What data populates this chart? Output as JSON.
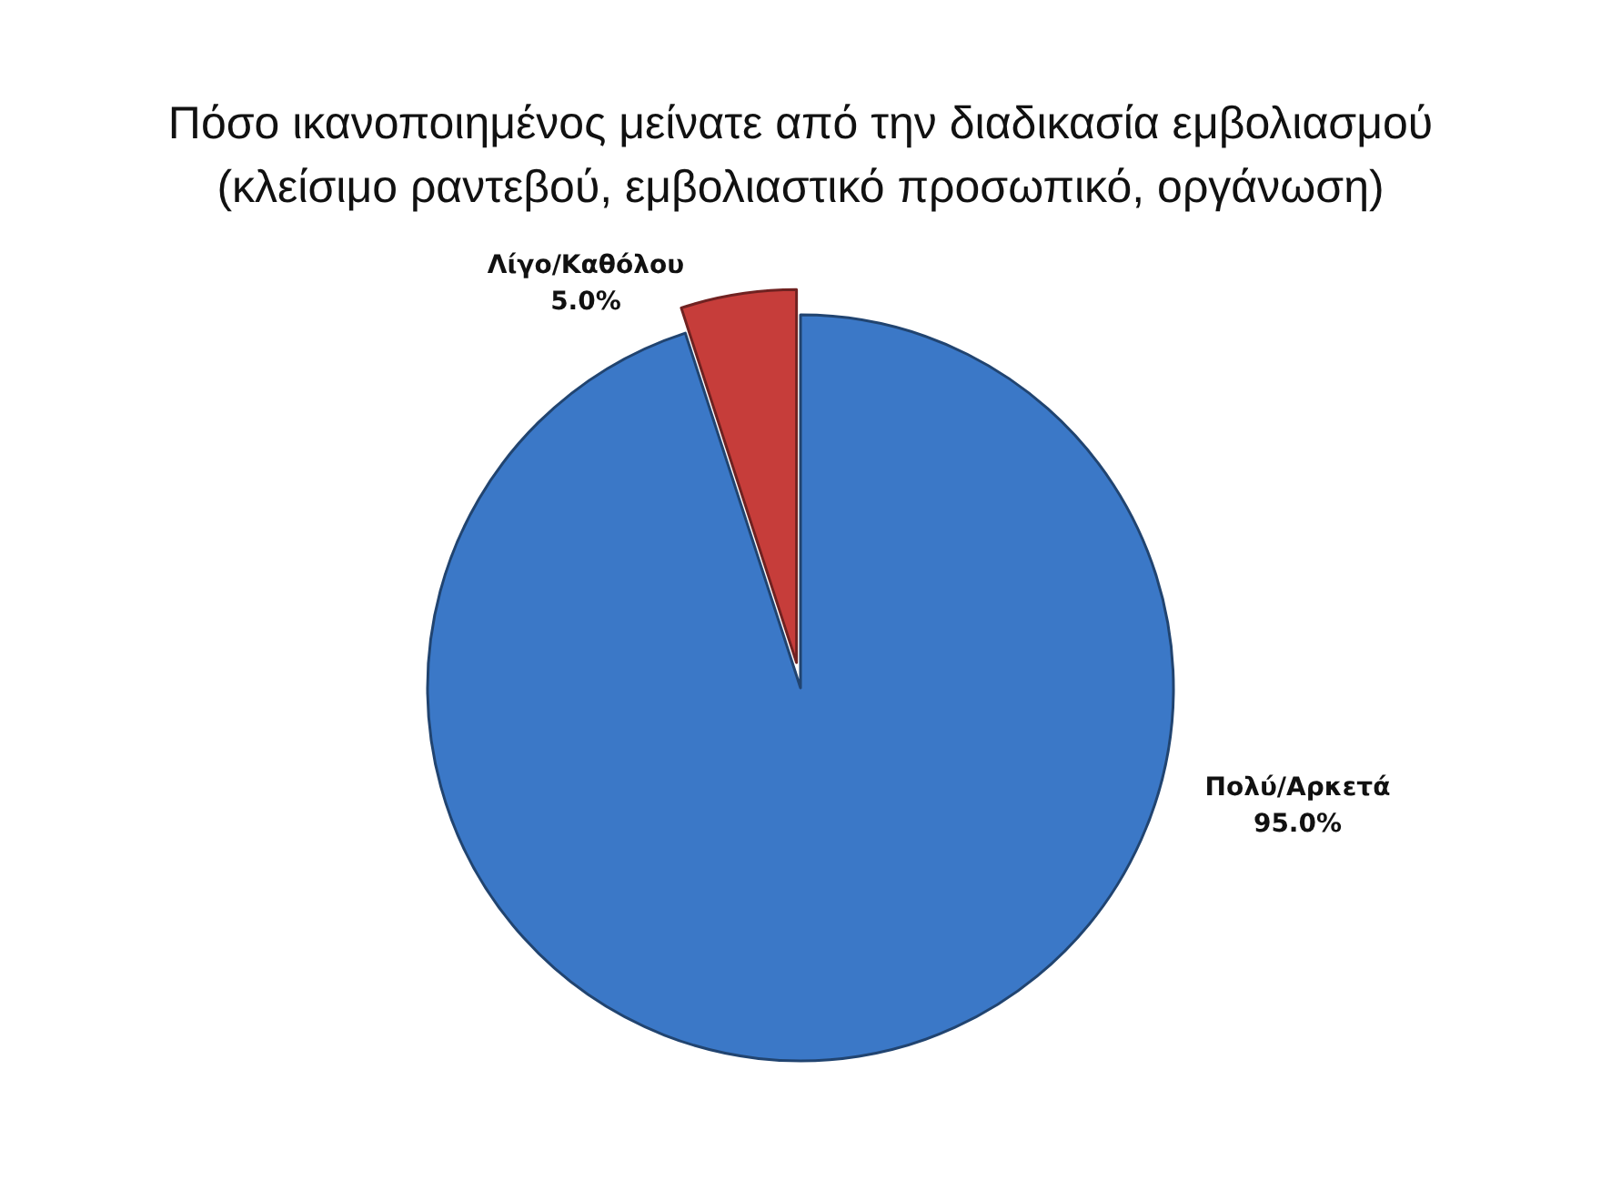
{
  "chart_data": {
    "type": "pie",
    "title": "Πόσο ικανοποιημένος μείνατε από την διαδικασία εμβολιασμού (κλείσιμο ραντεβού, εμβολιαστικό προσωπικό, οργάνωση)",
    "categories": [
      "Πολύ/Αρκετά",
      "Λίγο/Καθόλου"
    ],
    "values": [
      95,
      5
    ],
    "colors": [
      "#3b78c7",
      "#c63d3a"
    ],
    "value_labels": [
      "95.0%",
      "5.0%"
    ],
    "legend": false
  }
}
